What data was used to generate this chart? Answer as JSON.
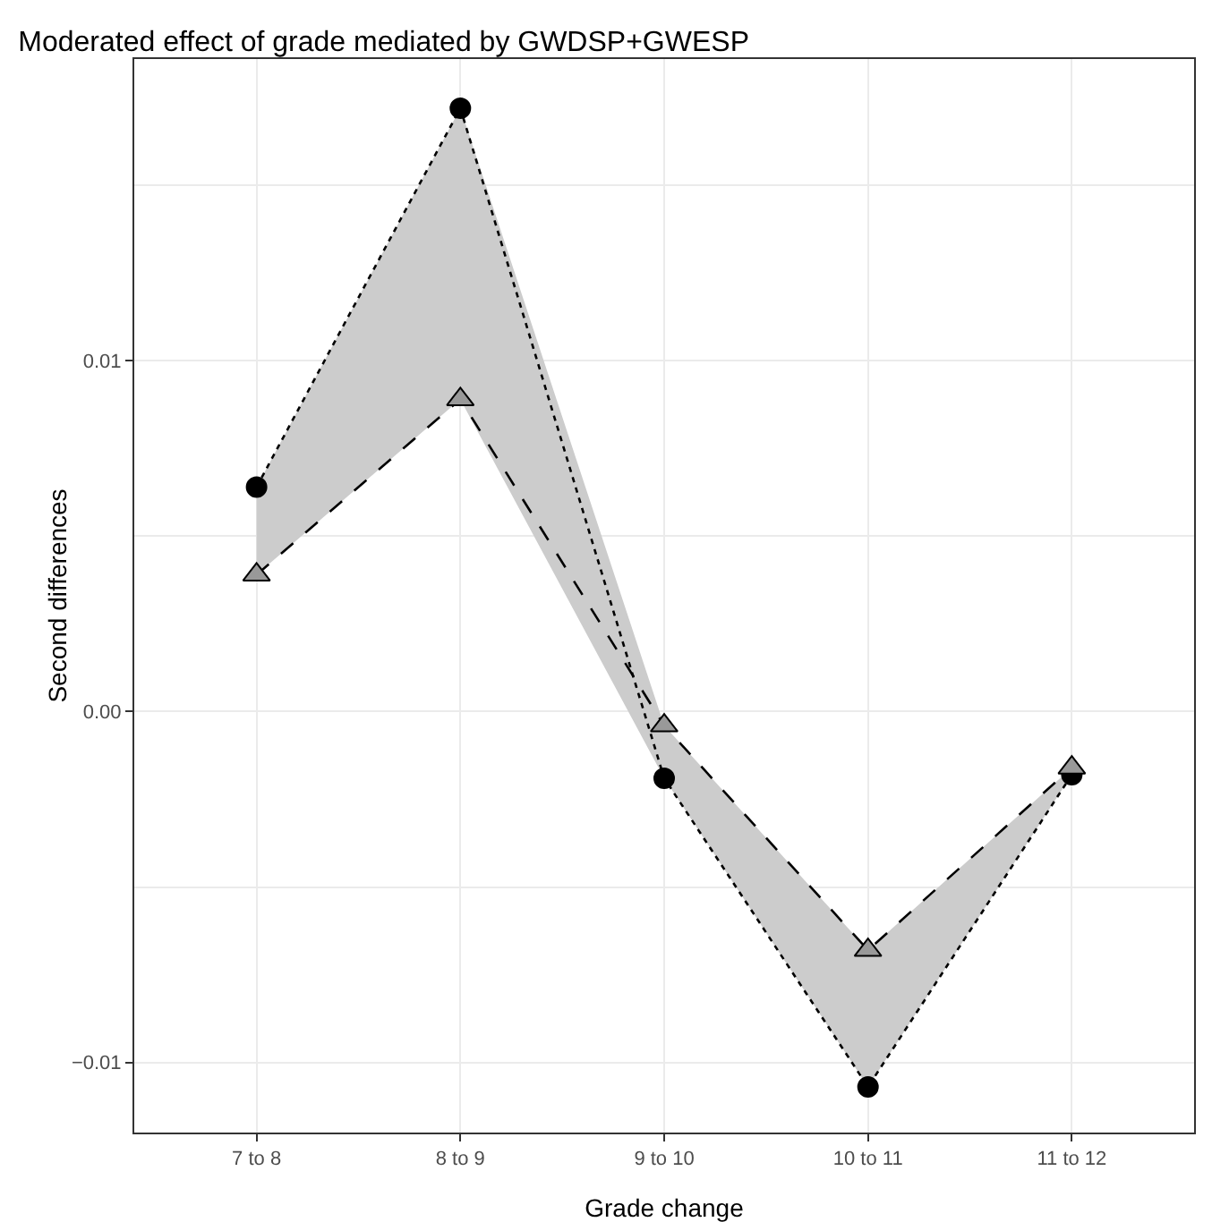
{
  "chart_data": {
    "type": "line",
    "title": "Moderated effect of grade mediated by GWDSP+GWESP",
    "xlabel": "Grade change",
    "ylabel": "Second differences",
    "categories": [
      "7 to 8",
      "8 to 9",
      "9 to 10",
      "10 to 11",
      "11 to 12"
    ],
    "series": [
      {
        "color": "#000000",
        "marker": "circle",
        "line_style": "dotted",
        "values": [
          0.0064,
          0.0172,
          -0.0019,
          -0.0107,
          -0.0018
        ],
        "lower": [
          0.0039,
          0.0089,
          -0.0019,
          -0.0107,
          -0.0018
        ],
        "upper": [
          0.0064,
          0.0172,
          -0.0004,
          -0.0068,
          -0.0016
        ]
      },
      {
        "color": "#999999",
        "marker": "triangle",
        "line_style": "dashed",
        "values": [
          0.0039,
          0.0089,
          -0.0004,
          -0.0068,
          -0.0016
        ]
      }
    ],
    "ylim": [
      -0.012,
      0.0186
    ],
    "yticks": [
      {
        "value": -0.01,
        "label": "−0.01"
      },
      {
        "value": -0.005,
        "label": null
      },
      {
        "value": 0,
        "label": "0.00"
      },
      {
        "value": 0.005,
        "label": null
      },
      {
        "value": 0.01,
        "label": "0.01"
      },
      {
        "value": 0.015,
        "label": null
      }
    ],
    "grid": true
  }
}
